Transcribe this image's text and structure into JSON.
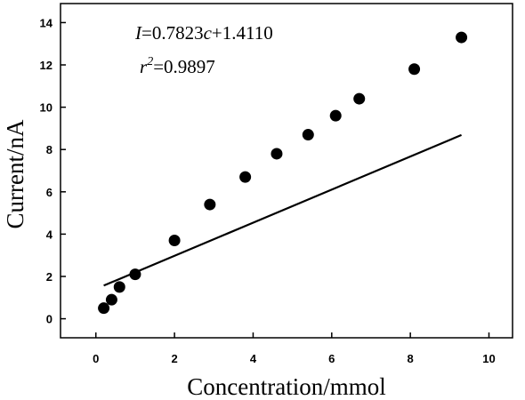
{
  "chart_data": {
    "type": "scatter",
    "xlabel": "Concentration/mmol",
    "ylabel": "Current/nA",
    "xlim": [
      -0.9,
      10.6
    ],
    "ylim": [
      -0.9,
      14.9
    ],
    "xticks": [
      0,
      2,
      4,
      6,
      8,
      10
    ],
    "yticks": [
      0,
      2,
      4,
      6,
      8,
      10,
      12,
      14
    ],
    "grid": false,
    "series": [
      {
        "points": [
          [
            0.2,
            0.5
          ],
          [
            0.4,
            0.9
          ],
          [
            0.6,
            1.5
          ],
          [
            1.0,
            2.1
          ],
          [
            2.0,
            3.7
          ],
          [
            2.9,
            5.4
          ],
          [
            3.8,
            6.7
          ],
          [
            4.6,
            7.8
          ],
          [
            5.4,
            8.7
          ],
          [
            6.1,
            9.6
          ],
          [
            6.7,
            10.4
          ],
          [
            8.1,
            11.8
          ],
          [
            9.3,
            13.3
          ]
        ]
      }
    ],
    "fit": {
      "slope": 0.7823,
      "intercept": 1.411,
      "x_range": [
        0.2,
        9.3
      ]
    },
    "annotations": {
      "equation": {
        "var_i": "I",
        "mid": "=0.7823",
        "var_c": "c",
        "tail": "+1.4110"
      },
      "r_squared": {
        "var_r": "r",
        "exp": "2",
        "value": "=0.9897"
      }
    }
  }
}
